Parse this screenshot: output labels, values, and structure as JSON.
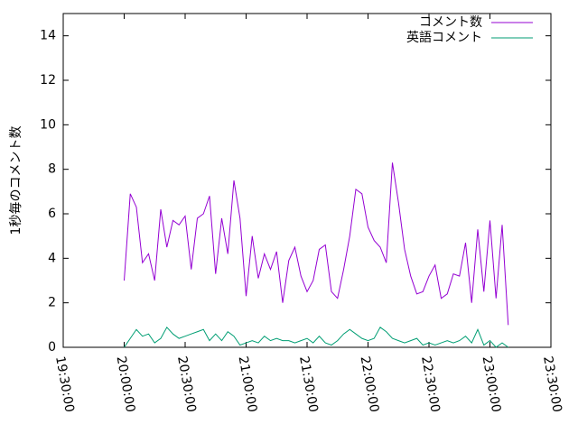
{
  "chart_data": {
    "type": "line",
    "ylabel": "1秒毎のコメント数",
    "x": [
      "20:00:00",
      "20:03:00",
      "20:06:00",
      "20:09:00",
      "20:12:00",
      "20:15:00",
      "20:18:00",
      "20:21:00",
      "20:24:00",
      "20:27:00",
      "20:30:00",
      "20:33:00",
      "20:36:00",
      "20:39:00",
      "20:42:00",
      "20:45:00",
      "20:48:00",
      "20:51:00",
      "20:54:00",
      "20:57:00",
      "21:00:00",
      "21:03:00",
      "21:06:00",
      "21:09:00",
      "21:12:00",
      "21:15:00",
      "21:18:00",
      "21:21:00",
      "21:24:00",
      "21:27:00",
      "21:30:00",
      "21:33:00",
      "21:36:00",
      "21:39:00",
      "21:42:00",
      "21:45:00",
      "21:48:00",
      "21:51:00",
      "21:54:00",
      "21:57:00",
      "22:00:00",
      "22:03:00",
      "22:06:00",
      "22:09:00",
      "22:12:00",
      "22:15:00",
      "22:18:00",
      "22:21:00",
      "22:24:00",
      "22:27:00",
      "22:30:00",
      "22:33:00",
      "22:36:00",
      "22:39:00",
      "22:42:00",
      "22:45:00",
      "22:48:00",
      "22:51:00",
      "22:54:00",
      "22:57:00",
      "23:00:00",
      "23:03:00",
      "23:06:00",
      "23:09:00"
    ],
    "series": [
      {
        "name": "コメント数",
        "color": "#9400d3",
        "values": [
          3.0,
          6.9,
          6.3,
          3.8,
          4.2,
          3.0,
          6.2,
          4.5,
          5.7,
          5.5,
          5.9,
          3.5,
          5.8,
          6.0,
          6.8,
          3.3,
          5.8,
          4.2,
          7.5,
          5.8,
          2.3,
          5.0,
          3.1,
          4.2,
          3.5,
          4.3,
          2.0,
          3.9,
          4.5,
          3.2,
          2.5,
          3.0,
          4.4,
          4.6,
          2.5,
          2.2,
          3.5,
          5.0,
          7.1,
          6.9,
          5.4,
          4.8,
          4.5,
          3.8,
          8.3,
          6.5,
          4.4,
          3.2,
          2.4,
          2.5,
          3.2,
          3.7,
          2.2,
          2.4,
          3.3,
          3.2,
          4.7,
          2.0,
          5.3,
          2.5,
          5.7,
          2.2,
          5.5,
          1.0
        ]
      },
      {
        "name": "英語コメント",
        "color": "#009e73",
        "values": [
          0,
          0.4,
          0.8,
          0.5,
          0.6,
          0.2,
          0.4,
          0.9,
          0.6,
          0.4,
          0.5,
          0.6,
          0.7,
          0.8,
          0.3,
          0.6,
          0.3,
          0.7,
          0.5,
          0.1,
          0.2,
          0.3,
          0.2,
          0.5,
          0.3,
          0.4,
          0.3,
          0.3,
          0.2,
          0.3,
          0.4,
          0.2,
          0.5,
          0.2,
          0.1,
          0.3,
          0.6,
          0.8,
          0.6,
          0.4,
          0.3,
          0.4,
          0.9,
          0.7,
          0.4,
          0.3,
          0.2,
          0.3,
          0.4,
          0.1,
          0.2,
          0.1,
          0.2,
          0.3,
          0.2,
          0.3,
          0.5,
          0.2,
          0.8,
          0.1,
          0.3,
          0.0,
          0.2,
          0.0
        ]
      }
    ],
    "xlim": [
      "19:30:00",
      "23:30:00"
    ],
    "xticks": [
      "19:30:00",
      "20:00:00",
      "20:30:00",
      "21:00:00",
      "21:30:00",
      "22:00:00",
      "22:30:00",
      "23:00:00",
      "23:30:00"
    ],
    "ylim": [
      0,
      15
    ],
    "yticks": [
      0,
      2,
      4,
      6,
      8,
      10,
      12,
      14
    ],
    "legend": "top-right"
  }
}
